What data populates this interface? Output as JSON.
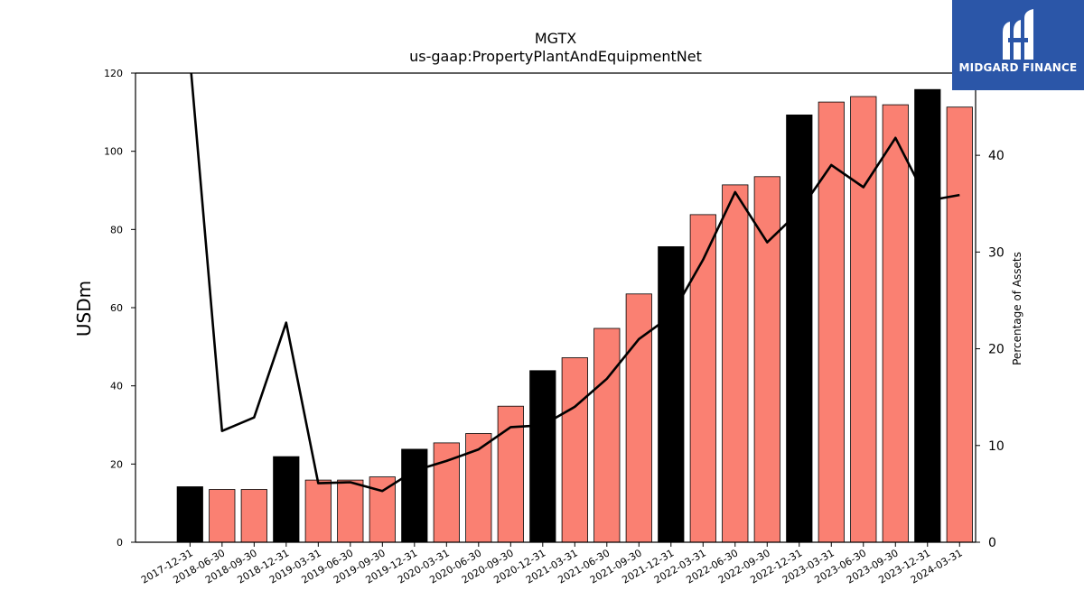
{
  "brand": {
    "name": "MIDGARD FINANCE",
    "logo_icon": "midgard-logo-icon",
    "background_color": "#2b56a8"
  },
  "chart_data": {
    "type": "bar",
    "title": "MGTX",
    "subtitle": "us-gaap:PropertyPlantAndEquipmentNet",
    "ylabel": "USDm",
    "y2label": "Percentage of Assets",
    "ylim": [
      0,
      120
    ],
    "y2lim": [
      0,
      48.5
    ],
    "yticks": [
      0,
      20,
      40,
      60,
      80,
      100,
      120
    ],
    "y2ticks": [
      0,
      10,
      20,
      30,
      40
    ],
    "categories": [
      "2017-12-31",
      "2018-06-30",
      "2018-09-30",
      "2018-12-31",
      "2019-03-31",
      "2019-06-30",
      "2019-09-30",
      "2019-12-31",
      "2020-03-31",
      "2020-06-30",
      "2020-09-30",
      "2020-12-31",
      "2021-03-31",
      "2021-06-30",
      "2021-09-30",
      "2021-12-31",
      "2022-03-31",
      "2022-06-30",
      "2022-09-30",
      "2022-12-31",
      "2023-03-31",
      "2023-06-30",
      "2023-09-30",
      "2023-12-31",
      "2024-03-31"
    ],
    "series": [
      {
        "type": "bar",
        "values": [
          14.2,
          13.5,
          13.5,
          21.9,
          15.9,
          15.9,
          16.7,
          23.8,
          25.4,
          27.8,
          34.8,
          43.9,
          47.2,
          54.7,
          63.5,
          75.6,
          83.8,
          91.4,
          93.5,
          109.3,
          112.6,
          114.0,
          111.9,
          115.8,
          111.3
        ],
        "highlight": [
          true,
          false,
          false,
          true,
          false,
          false,
          false,
          true,
          false,
          false,
          false,
          true,
          false,
          false,
          false,
          true,
          false,
          false,
          false,
          true,
          false,
          false,
          false,
          true,
          false
        ],
        "color": "#fa8072",
        "highlight_color": "#000000"
      },
      {
        "type": "line",
        "axis": "right",
        "values": [
          50.0,
          11.5,
          12.9,
          22.7,
          6.1,
          6.2,
          5.3,
          7.4,
          8.4,
          9.6,
          11.9,
          12.1,
          14.0,
          16.9,
          21.0,
          23.4,
          29.2,
          36.2,
          31.0,
          34.2,
          39.0,
          36.7,
          41.8,
          35.3,
          35.9
        ],
        "color": "#000000"
      }
    ]
  }
}
